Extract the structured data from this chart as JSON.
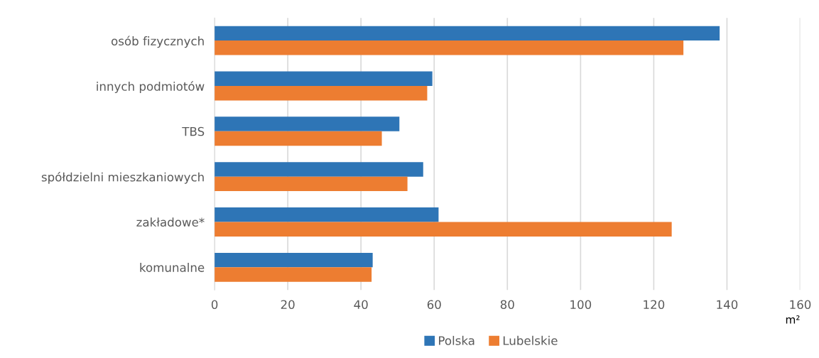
{
  "chart_data": {
    "type": "bar",
    "orientation": "horizontal",
    "xlabel": "m²",
    "categories": [
      "osób fizycznych",
      "innych podmiotów",
      "TBS",
      "spółdzielni mieszkaniowych",
      "zakładowe*",
      "komunalne"
    ],
    "series": [
      {
        "name": "Polska",
        "color": "#2e75b6",
        "values": [
          138,
          59.5,
          50.5,
          57.0,
          61.2,
          43.2
        ]
      },
      {
        "name": "Lubelskie",
        "color": "#ed7d31",
        "values": [
          128.1,
          58.1,
          45.7,
          52.7,
          124.9,
          42.9
        ]
      }
    ],
    "xlim": [
      0,
      160
    ],
    "xticks": [
      0,
      20,
      40,
      60,
      80,
      100,
      120,
      140,
      160
    ],
    "grid": "x",
    "legend": "bottom"
  }
}
